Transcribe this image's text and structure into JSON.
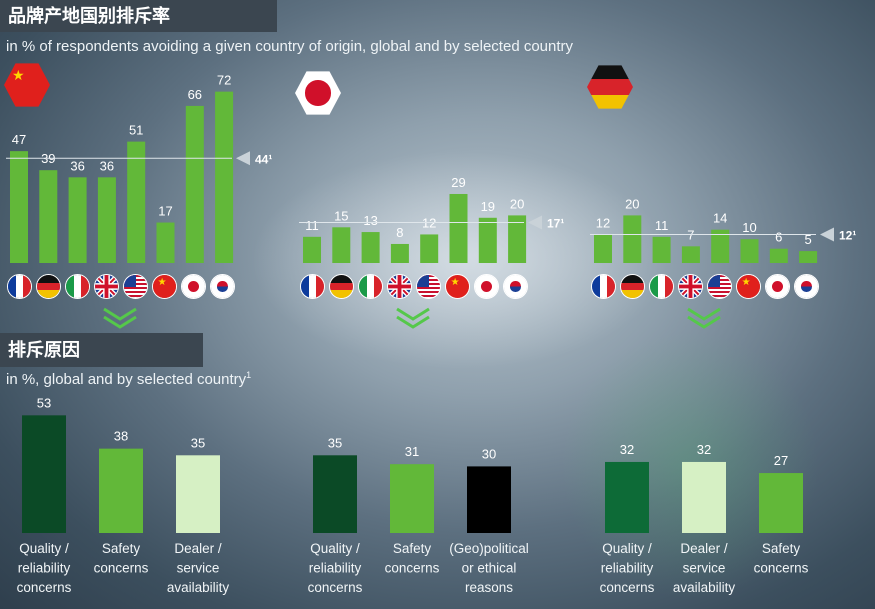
{
  "titles": {
    "avoid_title": "品牌产地国别排斥率",
    "avoid_subtitle": "in % of respondents avoiding a given country of origin, global and by selected country",
    "reasons_title": "排斥原因",
    "reasons_subtitle": "in %, global and by selected country",
    "reasons_subtitle_sup": "1"
  },
  "colors": {
    "bar_green": "#62b839",
    "dark_green": "#0b4a26",
    "mid_green": "#0d6b37",
    "light_green": "#d6f0c4",
    "black": "#000000"
  },
  "chart_data": [
    {
      "type": "bar",
      "panel": "china",
      "categories": [
        "France",
        "Germany",
        "Italy",
        "United Kingdom",
        "United States",
        "China",
        "Japan",
        "South Korea"
      ],
      "values": [
        47,
        39,
        36,
        36,
        51,
        17,
        66,
        72
      ],
      "reference": {
        "value": 44,
        "label": "44¹"
      }
    },
    {
      "type": "bar",
      "panel": "japan",
      "categories": [
        "France",
        "Germany",
        "Italy",
        "United Kingdom",
        "United States",
        "China",
        "Japan",
        "South Korea"
      ],
      "values": [
        11,
        15,
        13,
        8,
        12,
        29,
        19,
        20
      ],
      "reference": {
        "value": 17,
        "label": "17¹"
      }
    },
    {
      "type": "bar",
      "panel": "germany",
      "categories": [
        "France",
        "Germany",
        "Italy",
        "United Kingdom",
        "United States",
        "China",
        "Japan",
        "South Korea"
      ],
      "values": [
        12,
        20,
        11,
        7,
        14,
        10,
        6,
        5
      ],
      "reference": {
        "value": 12,
        "label": "12¹"
      }
    },
    {
      "type": "bar",
      "panel": "reasons-global",
      "categories": [
        "Quality / reliability concerns",
        "Safety concerns",
        "Dealer / service availability"
      ],
      "values": [
        53,
        38,
        35
      ]
    },
    {
      "type": "bar",
      "panel": "reasons-japan",
      "categories": [
        "Quality / reliability concerns",
        "Safety concerns",
        "(Geo)political or ethical reasons"
      ],
      "values": [
        35,
        31,
        30
      ]
    },
    {
      "type": "bar",
      "panel": "reasons-germany",
      "categories": [
        "Quality / reliability concerns",
        "Dealer / service availability",
        "Safety concerns"
      ],
      "values": [
        32,
        32,
        27
      ]
    }
  ],
  "reason_labels": {
    "p1": [
      [
        "Quality /",
        "reliability",
        "concerns"
      ],
      [
        "Safety",
        "concerns"
      ],
      [
        "Dealer /",
        "service",
        "availability"
      ]
    ],
    "p2": [
      [
        "Quality /",
        "reliability",
        "concerns"
      ],
      [
        "Safety",
        "concerns"
      ],
      [
        "(Geo)political",
        "or ethical",
        "reasons"
      ]
    ],
    "p3": [
      [
        "Quality /",
        "reliability",
        "concerns"
      ],
      [
        "Dealer /",
        "service",
        "availability"
      ],
      [
        "Safety",
        "concerns"
      ]
    ]
  },
  "flags": [
    "fr",
    "de",
    "it",
    "uk",
    "us",
    "cn",
    "jp",
    "kr"
  ],
  "panel_flags": [
    "cn",
    "jp",
    "de"
  ]
}
